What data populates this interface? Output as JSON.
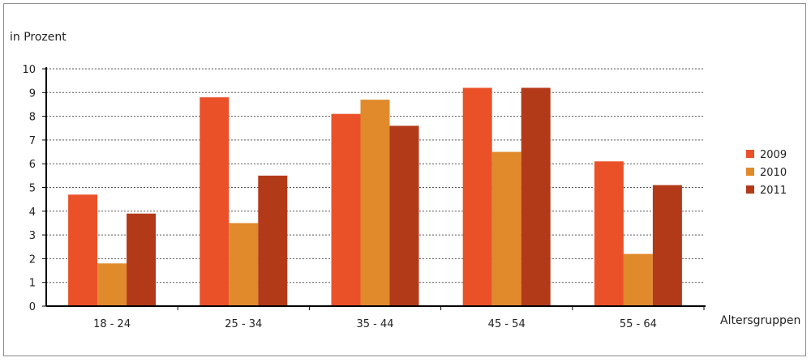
{
  "chart_data": {
    "type": "bar",
    "ylabel": "in Prozent",
    "xlabel": "Altersgruppen",
    "ylim": [
      0,
      10
    ],
    "yticks": [
      0,
      1,
      2,
      3,
      4,
      5,
      6,
      7,
      8,
      9,
      10
    ],
    "categories": [
      "18 - 24",
      "25 - 34",
      "35 - 44",
      "45 - 54",
      "55 - 64"
    ],
    "series": [
      {
        "name": "2009",
        "color": "#ea5129",
        "values": [
          4.7,
          8.8,
          8.1,
          9.2,
          6.1
        ]
      },
      {
        "name": "2010",
        "color": "#e08a2c",
        "values": [
          1.8,
          3.5,
          8.7,
          6.5,
          2.2
        ]
      },
      {
        "name": "2011",
        "color": "#b23a18",
        "values": [
          3.9,
          5.5,
          7.6,
          9.2,
          5.1
        ]
      }
    ],
    "grid": "horizontal dotted",
    "legend_position": "right"
  }
}
